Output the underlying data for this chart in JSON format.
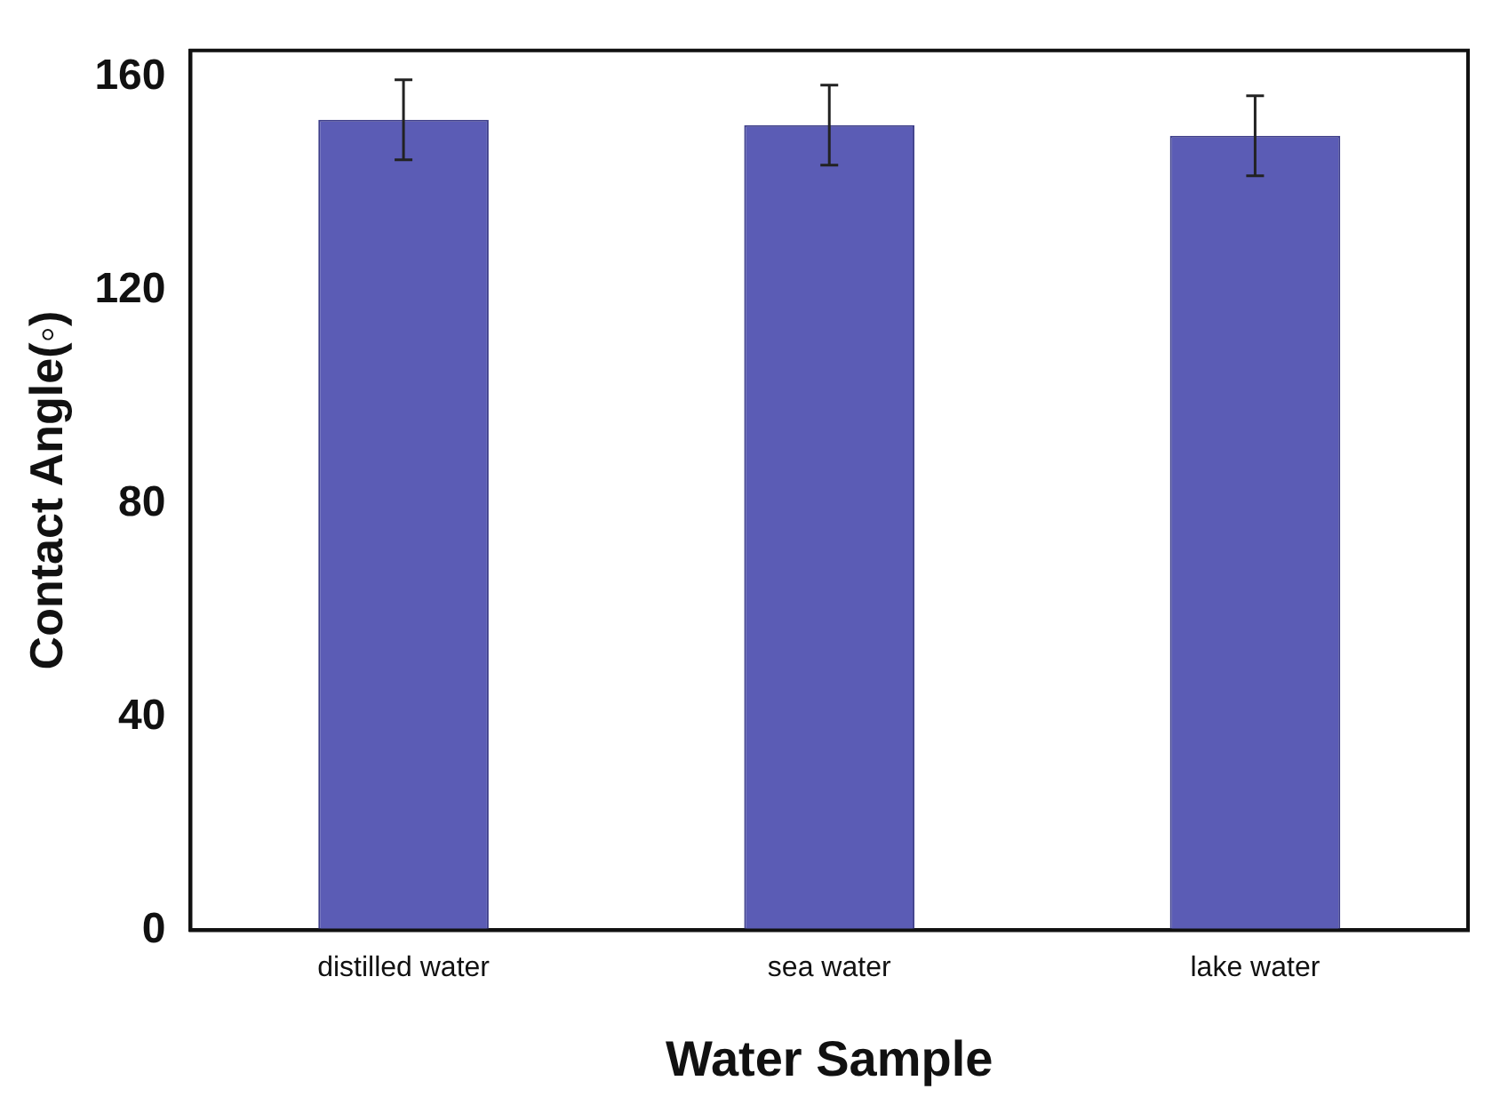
{
  "chart_data": {
    "type": "bar",
    "xlabel": "Water Sample",
    "ylabel": "Contact Angle(◦)",
    "categories": [
      "distilled water",
      "sea water",
      "lake water"
    ],
    "values": [
      152,
      151,
      149
    ],
    "errors": [
      7.5,
      7.5,
      7.5
    ],
    "color": "#5b5cb5",
    "ylim": [
      0,
      165
    ],
    "yticks": [
      0,
      40,
      80,
      120,
      160
    ],
    "grid": false,
    "legend": false
  }
}
